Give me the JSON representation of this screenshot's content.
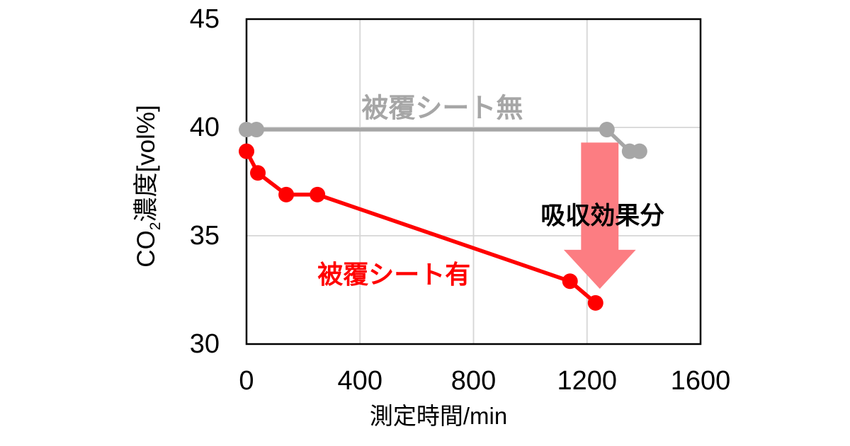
{
  "chart_data": {
    "type": "line",
    "title": "",
    "xlabel": "測定時間/min",
    "ylabel": "CO2濃度[vol%]",
    "ylabel_parts": {
      "pre": "CO",
      "sub": "2",
      "post": "濃度[vol%]"
    },
    "xlim": [
      0,
      1600
    ],
    "ylim": [
      30,
      45
    ],
    "x_ticks": [
      0,
      400,
      800,
      1200,
      1600
    ],
    "y_ticks": [
      45,
      40,
      35,
      30
    ],
    "grid_x": [
      400,
      800,
      1200
    ],
    "grid_y": [
      40,
      35
    ],
    "grid_on": true,
    "grid_color": "#D6D6D6",
    "border_color": "#000000",
    "background_color": "#FFFFFF",
    "legend_position": "inline-labels",
    "series": [
      {
        "name": "被覆シート無",
        "color": "#A6A6A6",
        "label": {
          "text": "被覆シート無",
          "x": 690,
          "y": 41.0
        },
        "points": [
          [
            0,
            39.9
          ],
          [
            35,
            39.9
          ],
          [
            1270,
            39.9
          ],
          [
            1350,
            38.9
          ],
          [
            1385,
            38.9
          ]
        ]
      },
      {
        "name": "被覆シート有",
        "color": "#FF0000",
        "label": {
          "text": "被覆シート有",
          "x": 520,
          "y": 33.3
        },
        "points": [
          [
            0,
            38.9
          ],
          [
            40,
            37.9
          ],
          [
            140,
            36.9
          ],
          [
            250,
            36.9
          ],
          [
            1140,
            32.9
          ],
          [
            1230,
            31.9
          ]
        ]
      }
    ],
    "annotation": {
      "text": "吸収効果分",
      "text_x": 1255,
      "text_y": 36.0,
      "arrow": {
        "x": 1245,
        "top_y": 39.3,
        "head_top_y": 34.35,
        "tip_y": 32.55,
        "shaft_half_w": 66,
        "head_half_w": 127,
        "color": "#FC7D82"
      }
    }
  }
}
